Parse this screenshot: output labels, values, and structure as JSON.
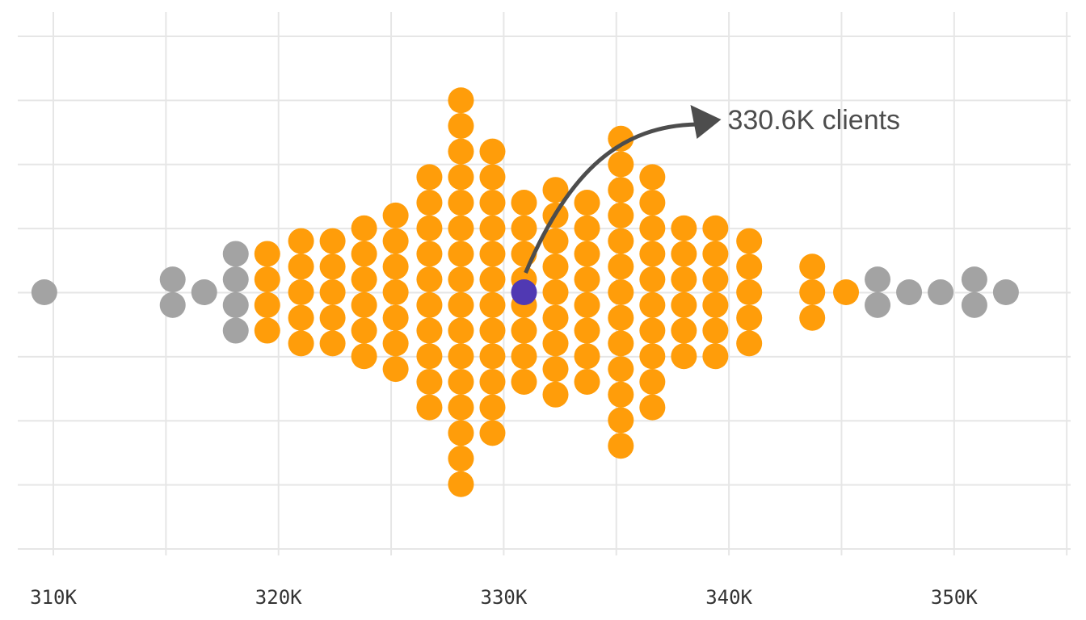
{
  "chart_data": {
    "type": "scatter",
    "subtype": "beeswarm",
    "title": "",
    "xlabel": "",
    "ylabel": "",
    "xlim": [
      309200,
      355400
    ],
    "grid": true,
    "x_ticks": [
      {
        "value": 310000,
        "label": "310K"
      },
      {
        "value": 320000,
        "label": "320K"
      },
      {
        "value": 330000,
        "label": "330K"
      },
      {
        "value": 340000,
        "label": "340K"
      },
      {
        "value": 350000,
        "label": "350K"
      }
    ],
    "colors": {
      "highlight": "#5039b3",
      "main": "#ff9d0a",
      "outlier": "#a3a3a3",
      "grid": "#e6e6e6",
      "arrow": "#4d4d4d"
    },
    "columns": [
      {
        "x": 309600,
        "count": 1,
        "group": "outlier"
      },
      {
        "x": 315300,
        "count": 2,
        "group": "outlier"
      },
      {
        "x": 316700,
        "count": 1,
        "group": "outlier"
      },
      {
        "x": 318100,
        "count": 4,
        "group": "outlier"
      },
      {
        "x": 319500,
        "count": 4,
        "group": "main"
      },
      {
        "x": 321000,
        "count": 5,
        "group": "main"
      },
      {
        "x": 322400,
        "count": 5,
        "group": "main"
      },
      {
        "x": 323800,
        "count": 6,
        "group": "main"
      },
      {
        "x": 325200,
        "count": 7,
        "group": "main"
      },
      {
        "x": 326700,
        "count": 10,
        "group": "main"
      },
      {
        "x": 328100,
        "count": 16,
        "group": "main"
      },
      {
        "x": 329500,
        "count": 12,
        "group": "main"
      },
      {
        "x": 330900,
        "count": 8,
        "group": "main"
      },
      {
        "x": 332300,
        "count": 9,
        "group": "main"
      },
      {
        "x": 333700,
        "count": 8,
        "group": "main"
      },
      {
        "x": 335200,
        "count": 13,
        "group": "main"
      },
      {
        "x": 336600,
        "count": 10,
        "group": "main"
      },
      {
        "x": 338000,
        "count": 6,
        "group": "main"
      },
      {
        "x": 339400,
        "count": 6,
        "group": "main"
      },
      {
        "x": 340900,
        "count": 5,
        "group": "main"
      },
      {
        "x": 343700,
        "count": 3,
        "group": "main"
      },
      {
        "x": 345200,
        "count": 1,
        "group": "main"
      },
      {
        "x": 346600,
        "count": 2,
        "group": "outlier"
      },
      {
        "x": 348000,
        "count": 1,
        "group": "outlier"
      },
      {
        "x": 349400,
        "count": 1,
        "group": "outlier"
      },
      {
        "x": 350900,
        "count": 2,
        "group": "outlier"
      },
      {
        "x": 352300,
        "count": 1,
        "group": "outlier"
      }
    ],
    "highlight": {
      "x": 330900,
      "label": "330.6K clients"
    }
  }
}
